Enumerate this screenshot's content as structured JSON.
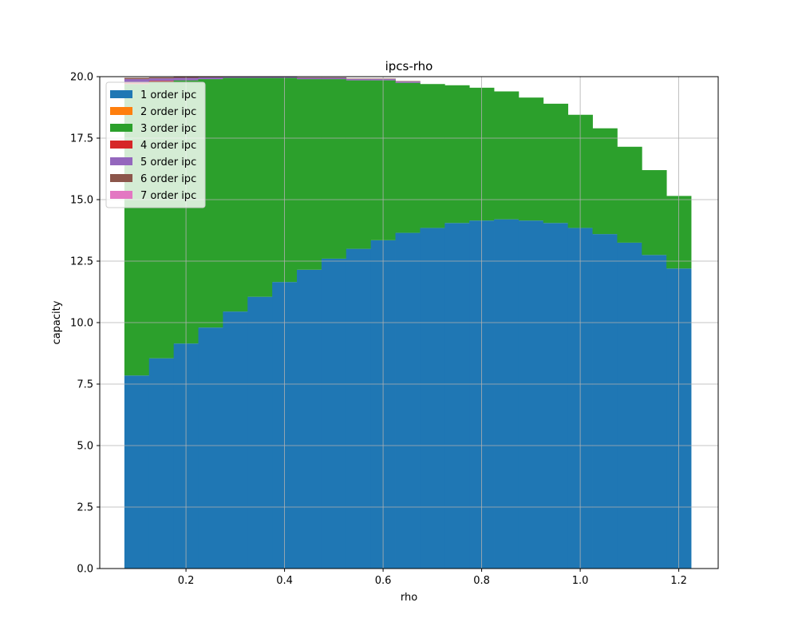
{
  "chart_data": {
    "type": "bar",
    "stacked": true,
    "title": "ipcs-rho",
    "xlabel": "rho",
    "ylabel": "capacity",
    "xlim": [
      0.025,
      1.28
    ],
    "ylim": [
      0,
      20
    ],
    "grid": true,
    "legend_position": "upper-left",
    "bar_width": 0.05,
    "x_ticks": [
      {
        "value": 0.2,
        "label": "0.2"
      },
      {
        "value": 0.4,
        "label": "0.4"
      },
      {
        "value": 0.6,
        "label": "0.6"
      },
      {
        "value": 0.8,
        "label": "0.8"
      },
      {
        "value": 1.0,
        "label": "1.0"
      },
      {
        "value": 1.2,
        "label": "1.2"
      }
    ],
    "y_ticks": [
      {
        "value": 0,
        "label": "0.0"
      },
      {
        "value": 2.5,
        "label": "2.5"
      },
      {
        "value": 5,
        "label": "5.0"
      },
      {
        "value": 7.5,
        "label": "7.5"
      },
      {
        "value": 10,
        "label": "10.0"
      },
      {
        "value": 12.5,
        "label": "12.5"
      },
      {
        "value": 15,
        "label": "15.0"
      },
      {
        "value": 17.5,
        "label": "17.5"
      },
      {
        "value": 20,
        "label": "20.0"
      }
    ],
    "x": [
      0.1,
      0.15,
      0.2,
      0.25,
      0.3,
      0.35,
      0.4,
      0.45,
      0.5,
      0.55,
      0.6,
      0.65,
      0.7,
      0.75,
      0.8,
      0.85,
      0.9,
      0.95,
      1.0,
      1.05,
      1.1,
      1.15,
      1.2
    ],
    "series": [
      {
        "name": "1 order ipc",
        "color": "#1f77b4",
        "values": [
          7.85,
          8.55,
          9.15,
          9.8,
          10.45,
          11.05,
          11.65,
          12.15,
          12.6,
          13.0,
          13.35,
          13.65,
          13.85,
          14.05,
          14.15,
          14.2,
          14.15,
          14.05,
          13.85,
          13.6,
          13.25,
          12.75,
          12.2
        ]
      },
      {
        "name": "2 order ipc",
        "color": "#ff7f0e",
        "values": [
          0,
          0,
          0,
          0,
          0,
          0,
          0,
          0,
          0,
          0,
          0,
          0,
          0,
          0,
          0,
          0,
          0,
          0,
          0,
          0,
          0,
          0,
          0
        ]
      },
      {
        "name": "3 order ipc",
        "color": "#2ca02c",
        "values": [
          11.85,
          11.25,
          10.7,
          10.1,
          9.5,
          8.9,
          8.3,
          7.75,
          7.3,
          6.85,
          6.5,
          6.1,
          5.85,
          5.6,
          5.4,
          5.2,
          5.0,
          4.85,
          4.6,
          4.3,
          3.9,
          3.45,
          2.95
        ]
      },
      {
        "name": "4 order ipc",
        "color": "#d62728",
        "values": [
          0.08,
          0.03,
          0,
          0,
          0,
          0,
          0,
          0,
          0,
          0,
          0,
          0,
          0,
          0,
          0,
          0,
          0,
          0,
          0,
          0,
          0,
          0,
          0
        ]
      },
      {
        "name": "5 order ipc",
        "color": "#9467bd",
        "values": [
          0.12,
          0.1,
          0.1,
          0.07,
          0.05,
          0.05,
          0.04,
          0.05,
          0.05,
          0.05,
          0.05,
          0.05,
          0,
          0,
          0,
          0,
          0,
          0,
          0,
          0,
          0,
          0,
          0
        ]
      },
      {
        "name": "6 order ipc",
        "color": "#8c564b",
        "values": [
          0.05,
          0.04,
          0.04,
          0.03,
          0.02,
          0.02,
          0.02,
          0.02,
          0.02,
          0.02,
          0.02,
          0.02,
          0,
          0,
          0,
          0,
          0,
          0,
          0,
          0,
          0,
          0,
          0
        ]
      },
      {
        "name": "7 order ipc",
        "color": "#e377c2",
        "values": [
          0,
          0,
          0,
          0,
          0,
          0,
          0,
          0,
          0,
          0,
          0,
          0,
          0,
          0,
          0,
          0,
          0,
          0,
          0,
          0,
          0,
          0,
          0
        ]
      }
    ]
  }
}
